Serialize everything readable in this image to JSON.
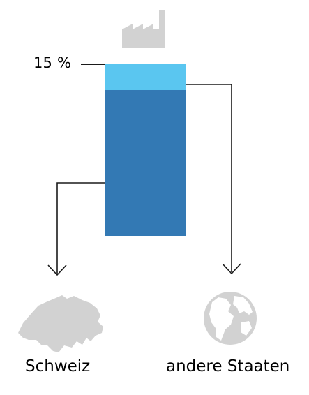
{
  "share_label": "15 %",
  "destinations": {
    "left": "Schweiz",
    "right": "andere Staaten"
  },
  "icons": {
    "top": "factory-icon",
    "left": "switzerland-map-icon",
    "right": "globe-icon"
  },
  "bar": {
    "top_segment_share": 0.15,
    "bottom_segment_share": 0.85
  },
  "colors": {
    "top_segment": "#5ac6f0",
    "bottom_segment": "#3379b4",
    "icons": "#d2d2d2",
    "lines": "#1a1a1a"
  }
}
